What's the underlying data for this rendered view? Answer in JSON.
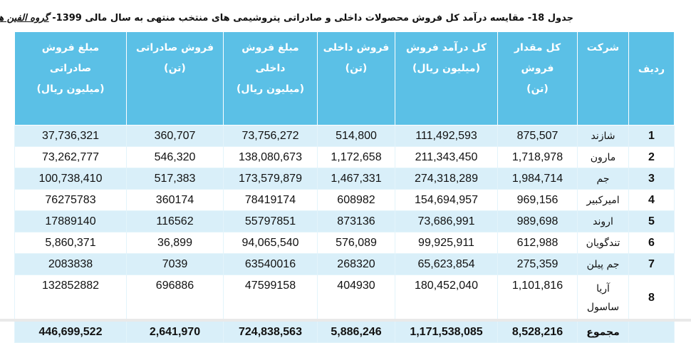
{
  "caption": {
    "text": "جدول 18- مقایسه درآمد کل فروش محصولات داخلی و صادراتی پتروشیمی های منتخب منتهی به سال مالی 1399-",
    "group": "گروه الفین ها"
  },
  "headers": {
    "row_num": "ردیف",
    "company": "شرکت",
    "total_qty_1": "کل مقدار فروش",
    "total_qty_2": "(تن)",
    "total_rev_1": "کل درآمد فروش",
    "total_rev_2": "(میلیون ریال)",
    "dom_ton_1": "فروش داخلی",
    "dom_ton_2": "(تن)",
    "dom_val_1": "مبلغ فروش",
    "dom_val_2": "داخلی",
    "dom_val_3": "(میلیون ریال)",
    "exp_ton_1": "فروش صادراتی",
    "exp_ton_2": "(تن)",
    "exp_val_1": "مبلغ فروش",
    "exp_val_2": "صادراتی",
    "exp_val_3": "(میلیون ریال)"
  },
  "rows": [
    {
      "n": "1",
      "company": "شازند",
      "qty": "875,507",
      "rev": "111,492,593",
      "dom_ton": "514,800",
      "dom_val": "73,756,272",
      "exp_ton": "360,707",
      "exp_val": "37,736,321"
    },
    {
      "n": "2",
      "company": "مارون",
      "qty": "1,718,978",
      "rev": "211,343,450",
      "dom_ton": "1,172,658",
      "dom_val": "138,080,673",
      "exp_ton": "546,320",
      "exp_val": "73,262,777"
    },
    {
      "n": "3",
      "company": "جم",
      "qty": "1,984,714",
      "rev": "274,318,289",
      "dom_ton": "1,467,331",
      "dom_val": "173,579,879",
      "exp_ton": "517,383",
      "exp_val": "100,738,410"
    },
    {
      "n": "4",
      "company": "امیرکبیر",
      "qty": "969,156",
      "rev": "154,694,957",
      "dom_ton": "608982",
      "dom_val": "78419174",
      "exp_ton": "360174",
      "exp_val": "76275783"
    },
    {
      "n": "5",
      "company": "اروند",
      "qty": "989,698",
      "rev": "73,686,991",
      "dom_ton": "873136",
      "dom_val": "55797851",
      "exp_ton": "116562",
      "exp_val": "17889140"
    },
    {
      "n": "6",
      "company": "تندگویان",
      "qty": "612,988",
      "rev": "99,925,911",
      "dom_ton": "576,089",
      "dom_val": "94,065,540",
      "exp_ton": "36,899",
      "exp_val": "5,860,371"
    },
    {
      "n": "7",
      "company": "جم پیلن",
      "qty": "275,359",
      "rev": "65,623,854",
      "dom_ton": "268320",
      "dom_val": "63540016",
      "exp_ton": "7039",
      "exp_val": "2083838"
    }
  ],
  "row8": {
    "n": "8",
    "company_1": "آریا",
    "company_2": "ساسول",
    "qty": "1,101,816",
    "rev": "180,452,040",
    "dom_ton": "404930",
    "dom_val": "47599158",
    "exp_ton": "696886",
    "exp_val": "132852882"
  },
  "total": {
    "label": "مجموع",
    "qty": "8,528,216",
    "rev": "1,171,538,085",
    "dom_ton": "5,886,246",
    "dom_val": "724,838,563",
    "exp_ton": "2,641,970",
    "exp_val": "446,699,522"
  },
  "colors": {
    "header": "#5bc0e6",
    "band": "#d9eff9"
  }
}
